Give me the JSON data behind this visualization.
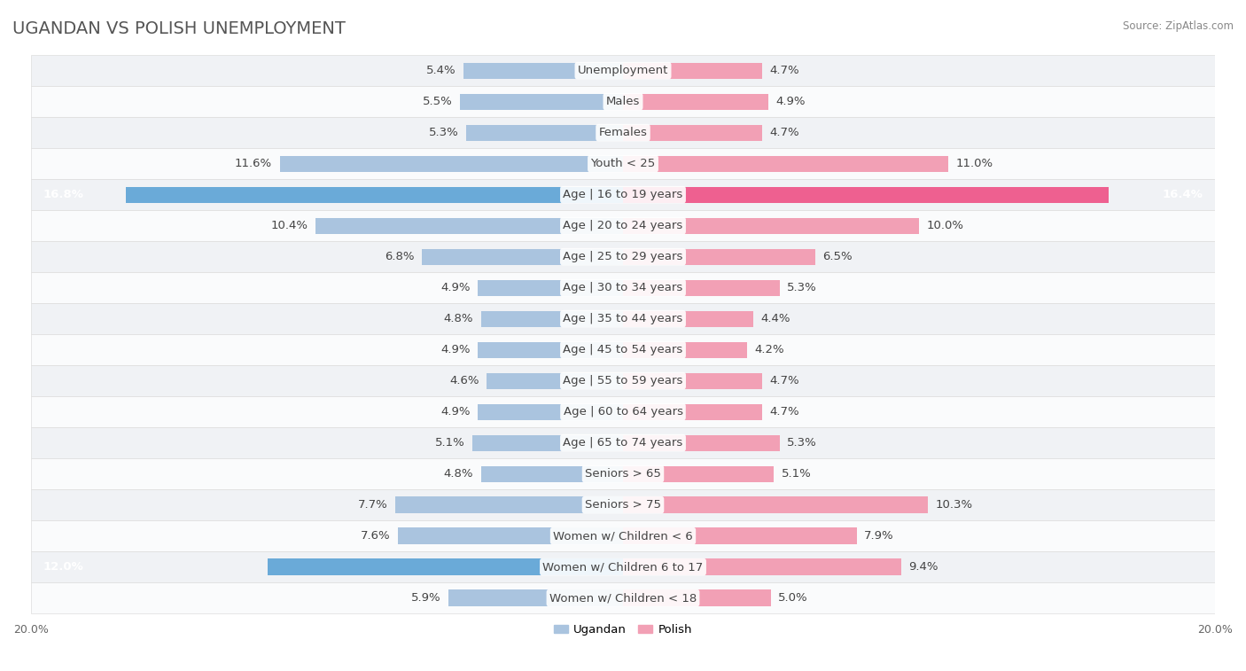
{
  "title": "UGANDAN VS POLISH UNEMPLOYMENT",
  "source": "Source: ZipAtlas.com",
  "categories": [
    "Unemployment",
    "Males",
    "Females",
    "Youth < 25",
    "Age | 16 to 19 years",
    "Age | 20 to 24 years",
    "Age | 25 to 29 years",
    "Age | 30 to 34 years",
    "Age | 35 to 44 years",
    "Age | 45 to 54 years",
    "Age | 55 to 59 years",
    "Age | 60 to 64 years",
    "Age | 65 to 74 years",
    "Seniors > 65",
    "Seniors > 75",
    "Women w/ Children < 6",
    "Women w/ Children 6 to 17",
    "Women w/ Children < 18"
  ],
  "ugandan": [
    5.4,
    5.5,
    5.3,
    11.6,
    16.8,
    10.4,
    6.8,
    4.9,
    4.8,
    4.9,
    4.6,
    4.9,
    5.1,
    4.8,
    7.7,
    7.6,
    12.0,
    5.9
  ],
  "polish": [
    4.7,
    4.9,
    4.7,
    11.0,
    16.4,
    10.0,
    6.5,
    5.3,
    4.4,
    4.2,
    4.7,
    4.7,
    5.3,
    5.1,
    10.3,
    7.9,
    9.4,
    5.0
  ],
  "ugandan_color": "#aac4df",
  "polish_color": "#f2a0b5",
  "ugandan_color_highlight": "#6aaad8",
  "polish_color_highlight": "#ee6090",
  "row_bg_even": "#f0f2f5",
  "row_bg_odd": "#fafbfc",
  "axis_max": 20.0,
  "legend_ugandan": "Ugandan",
  "legend_polish": "Polish",
  "label_fontsize": 9.5,
  "cat_fontsize": 9.5,
  "title_fontsize": 14,
  "highlight_ugandan": [
    4,
    16
  ],
  "highlight_polish": [
    4,
    16
  ]
}
